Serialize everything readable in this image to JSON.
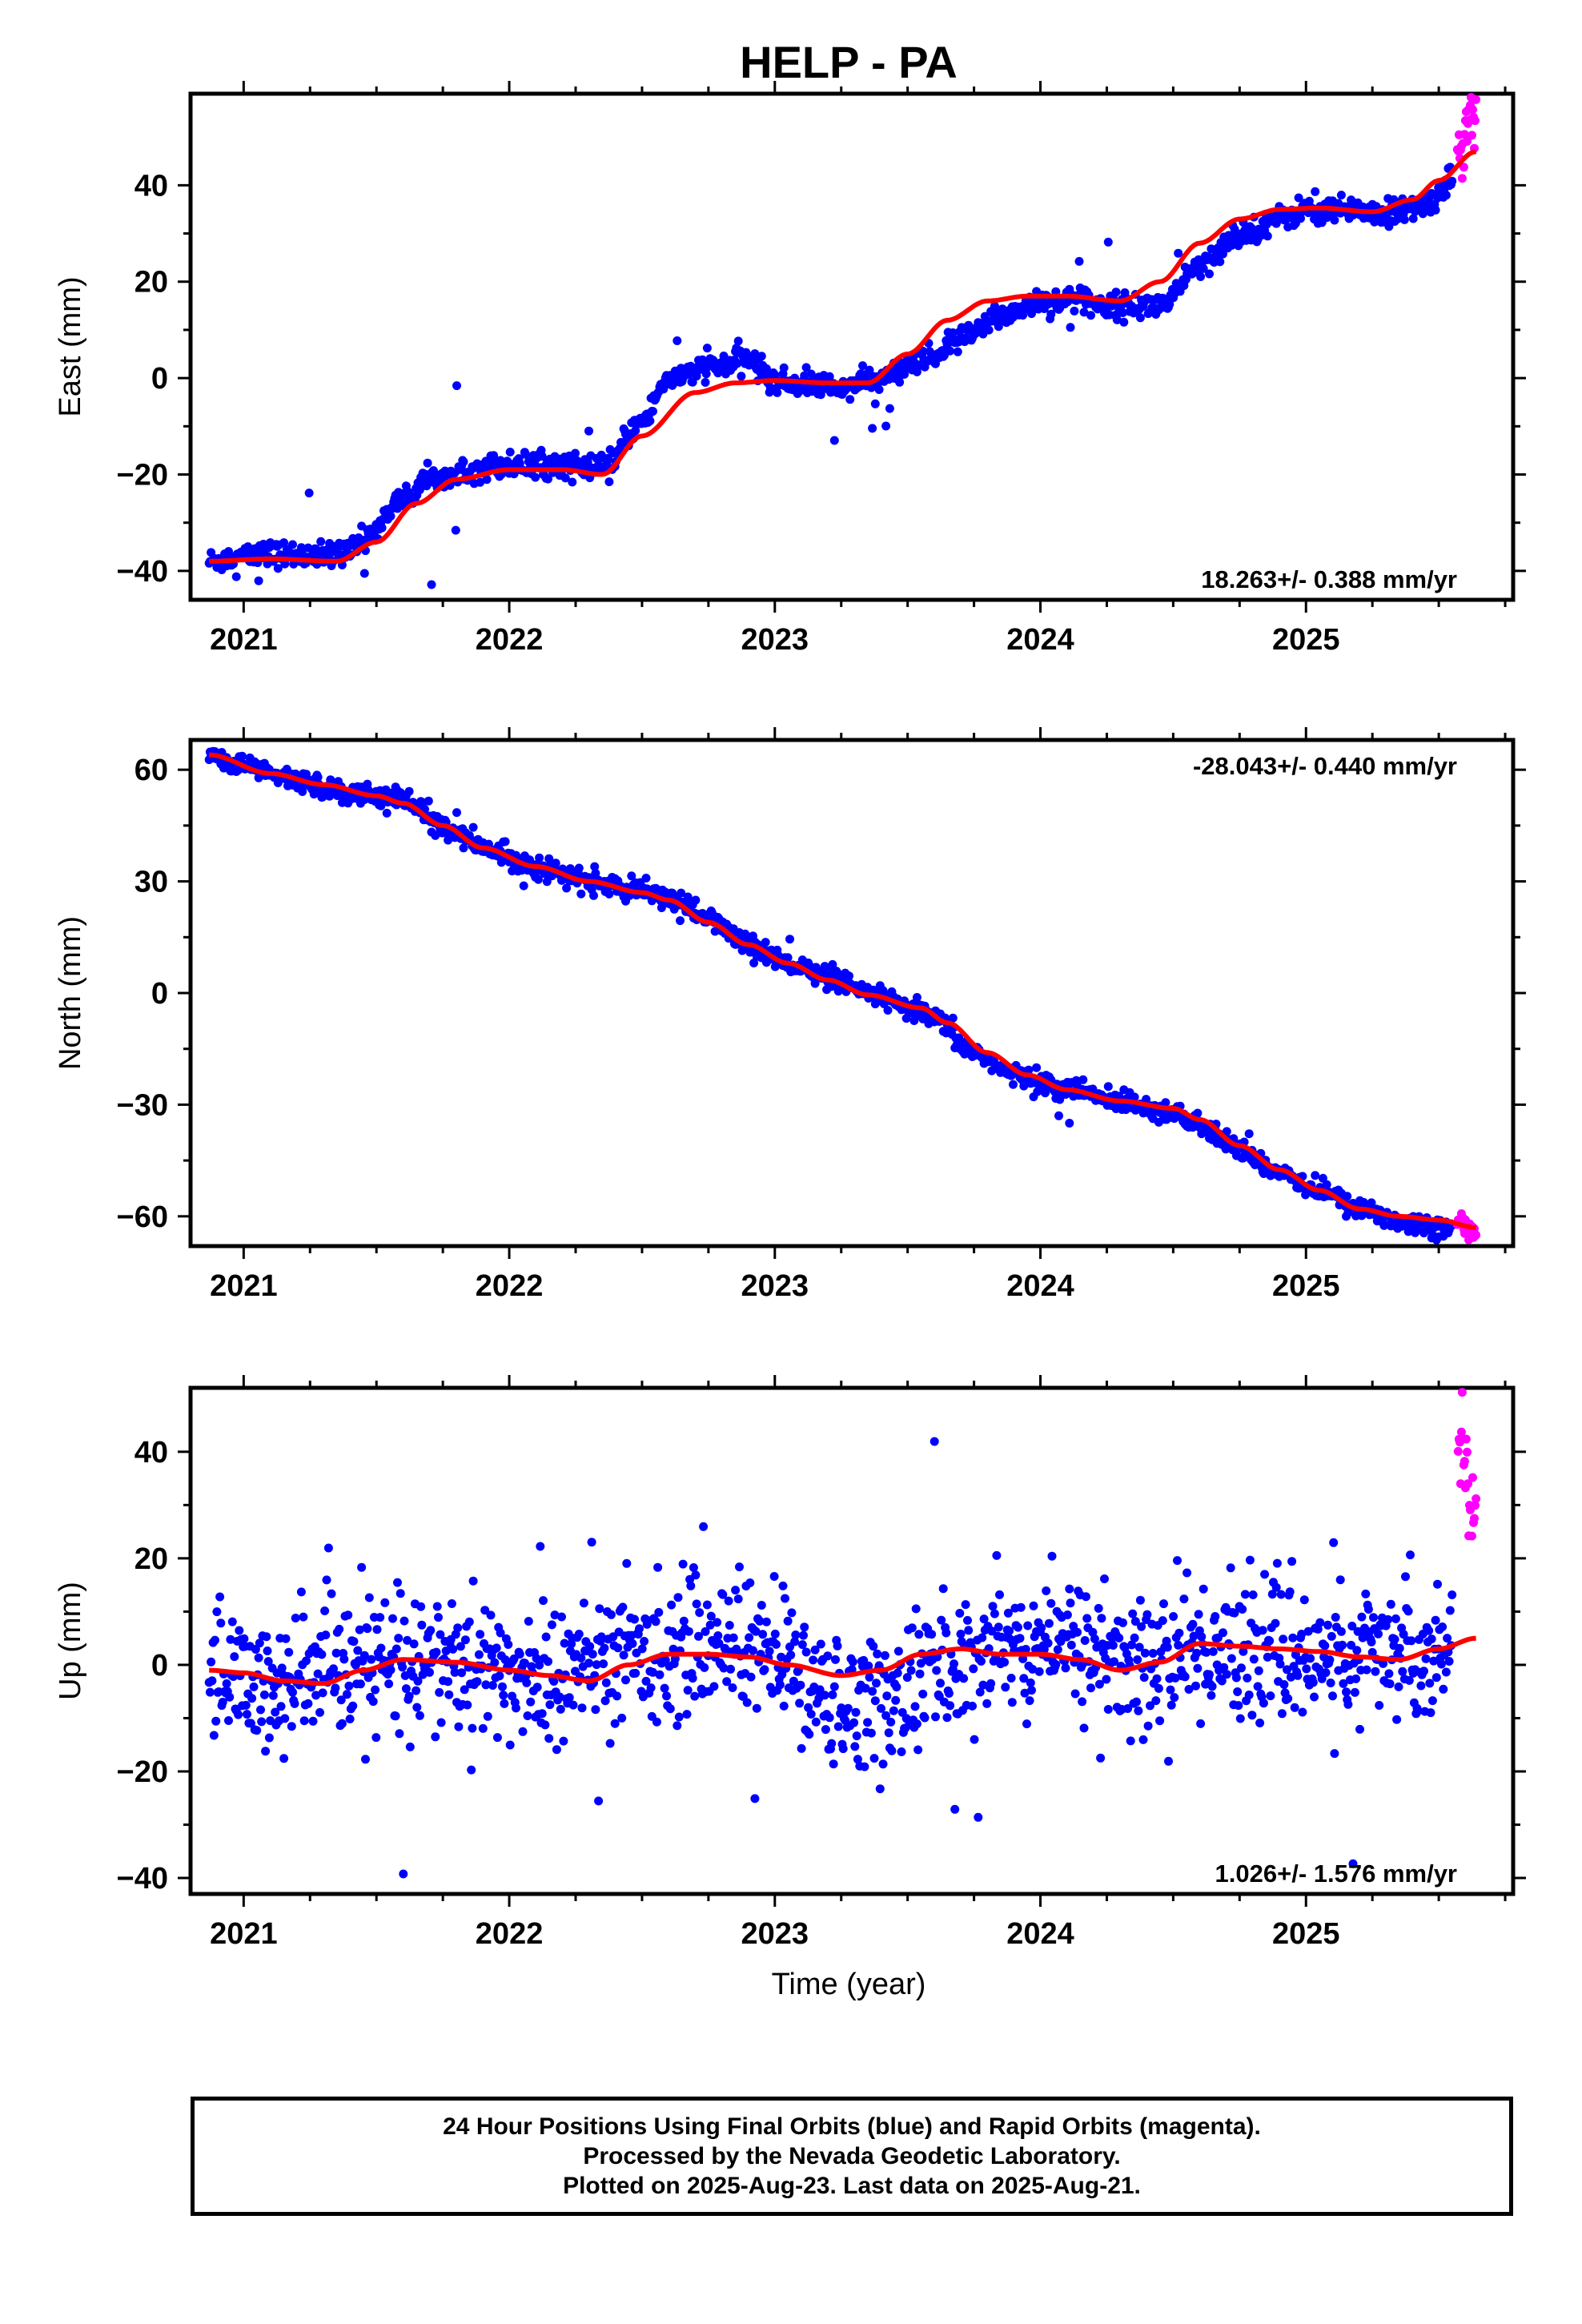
{
  "title": "HELP - PA",
  "chart_data": [
    {
      "type": "scatter",
      "ylabel": "East (mm)",
      "xlim": [
        2020.8,
        2025.78
      ],
      "ylim": [
        -46,
        59
      ],
      "yticks": [
        -40,
        -20,
        0,
        20,
        40
      ],
      "xticks": [
        2021,
        2022,
        2023,
        2024,
        2025
      ],
      "rate_text": "18.263+/- 0.388 mm/yr",
      "rate_position": "bottom-right",
      "grid": false,
      "series": [
        {
          "color": "#0000ff",
          "noise": 1.3,
          "outlier_rate": 0.015,
          "outlier_scale": 5,
          "x": [
            2020.87,
            2021.0,
            2021.1,
            2021.3,
            2021.45,
            2021.6,
            2021.7,
            2021.8,
            2022.0,
            2022.2,
            2022.35,
            2022.5,
            2022.6,
            2022.75,
            2022.9,
            2023.0,
            2023.1,
            2023.25,
            2023.4,
            2023.55,
            2023.7,
            2023.85,
            2024.0,
            2024.15,
            2024.3,
            2024.45,
            2024.6,
            2024.75,
            2024.9,
            2025.0,
            2025.15,
            2025.3,
            2025.45,
            2025.55
          ],
          "y": [
            -38,
            -37,
            -36.5,
            -37,
            -34,
            -25,
            -21,
            -19,
            -18,
            -18,
            -19,
            -9,
            0,
            2,
            4,
            -1,
            -1,
            -2,
            0,
            3,
            8,
            13,
            16,
            16,
            15,
            15,
            23,
            30,
            33,
            35,
            35,
            34,
            36,
            41
          ]
        },
        {
          "color": "#ff00ff",
          "noise": 3,
          "outlier_rate": 0,
          "outlier_scale": 1,
          "x": [
            2025.57,
            2025.64
          ],
          "y": [
            47,
            55
          ]
        }
      ],
      "fit": {
        "color": "#ff0000",
        "x": [
          2020.87,
          2021.1,
          2021.35,
          2021.5,
          2021.65,
          2021.8,
          2022.0,
          2022.2,
          2022.35,
          2022.5,
          2022.7,
          2022.85,
          2023.0,
          2023.2,
          2023.35,
          2023.5,
          2023.65,
          2023.8,
          2023.95,
          2024.1,
          2024.3,
          2024.45,
          2024.6,
          2024.75,
          2024.9,
          2025.05,
          2025.25,
          2025.4,
          2025.5,
          2025.64
        ],
        "y": [
          -38,
          -37.5,
          -38,
          -34,
          -26,
          -21,
          -19,
          -19,
          -20,
          -12,
          -3,
          -1,
          -0.5,
          -1,
          -1,
          5,
          12,
          16,
          17,
          17,
          16,
          20,
          28,
          33,
          35,
          35.3,
          34.5,
          37,
          41,
          47
        ]
      }
    },
    {
      "type": "scatter",
      "ylabel": "North (mm)",
      "xlim": [
        2020.8,
        2025.78
      ],
      "ylim": [
        -68,
        68
      ],
      "yticks": [
        -60,
        -30,
        0,
        30,
        60
      ],
      "xticks": [
        2021,
        2022,
        2023,
        2024,
        2025
      ],
      "rate_text": "-28.043+/- 0.440 mm/yr",
      "rate_position": "top-right",
      "grid": false,
      "series": [
        {
          "color": "#0000ff",
          "noise": 1.4,
          "outlier_rate": 0.01,
          "outlier_scale": 3,
          "x": [
            2020.87,
            2021.0,
            2021.2,
            2021.4,
            2021.6,
            2021.75,
            2021.9,
            2022.1,
            2022.3,
            2022.5,
            2022.6,
            2022.75,
            2022.9,
            2023.05,
            2023.2,
            2023.35,
            2023.5,
            2023.6,
            2023.75,
            2023.9,
            2024.1,
            2024.3,
            2024.5,
            2024.6,
            2024.75,
            2024.9,
            2025.05,
            2025.2,
            2025.4,
            2025.55
          ],
          "y": [
            64,
            61,
            57,
            54,
            52,
            45,
            39,
            34,
            30,
            27,
            26,
            20,
            13,
            8,
            4,
            0,
            -4,
            -7,
            -16,
            -22,
            -26,
            -29,
            -32,
            -36,
            -42,
            -48,
            -53,
            -58,
            -62,
            -63
          ]
        },
        {
          "color": "#ff00ff",
          "noise": 1.2,
          "outlier_rate": 0,
          "outlier_scale": 1,
          "x": [
            2025.57,
            2025.64
          ],
          "y": [
            -61,
            -64
          ]
        }
      ],
      "fit": {
        "color": "#ff0000",
        "x": [
          2020.87,
          2021.1,
          2021.3,
          2021.5,
          2021.6,
          2021.75,
          2021.9,
          2022.1,
          2022.3,
          2022.5,
          2022.6,
          2022.75,
          2022.9,
          2023.05,
          2023.2,
          2023.35,
          2023.55,
          2023.65,
          2023.8,
          2023.95,
          2024.1,
          2024.3,
          2024.5,
          2024.6,
          2024.75,
          2024.9,
          2025.05,
          2025.2,
          2025.35,
          2025.5,
          2025.64
        ],
        "y": [
          64,
          59,
          56,
          53,
          51,
          45,
          39,
          34,
          30,
          27,
          25,
          19,
          13,
          8,
          3.5,
          -0.5,
          -4,
          -8,
          -16,
          -22,
          -26,
          -29,
          -31,
          -34,
          -41,
          -47.5,
          -53,
          -58,
          -60,
          -61,
          -63
        ]
      }
    },
    {
      "type": "scatter",
      "ylabel": "Up (mm)",
      "xlabel": "Time (year)",
      "xlim": [
        2020.8,
        2025.78
      ],
      "ylim": [
        -43,
        52
      ],
      "yticks": [
        -40,
        -20,
        0,
        20,
        40
      ],
      "xticks": [
        2021,
        2022,
        2023,
        2024,
        2025
      ],
      "rate_text": "1.026+/- 1.576 mm/yr",
      "rate_position": "bottom-right",
      "grid": false,
      "series": [
        {
          "color": "#0000ff",
          "noise": 6.5,
          "outlier_rate": 0.02,
          "outlier_scale": 3.2,
          "x": [
            2020.87,
            2021.1,
            2021.3,
            2021.5,
            2021.65,
            2021.8,
            2022.0,
            2022.2,
            2022.4,
            2022.6,
            2022.8,
            2023.0,
            2023.2,
            2023.4,
            2023.6,
            2023.8,
            2024.0,
            2024.2,
            2024.4,
            2024.6,
            2024.8,
            2025.0,
            2025.2,
            2025.4,
            2025.55
          ],
          "y": [
            -2,
            -4,
            -3,
            0,
            1,
            0,
            -2,
            -2,
            1,
            3,
            5,
            2,
            -8,
            -7,
            -2,
            2,
            5,
            3,
            -1,
            3,
            2,
            2,
            1,
            2,
            4
          ]
        },
        {
          "color": "#ff00ff",
          "noise": 6,
          "outlier_rate": 0,
          "outlier_scale": 1,
          "x": [
            2025.57,
            2025.64
          ],
          "y": [
            42,
            26
          ]
        }
      ],
      "fit": {
        "color": "#ff0000",
        "x": [
          2020.87,
          2021.0,
          2021.15,
          2021.3,
          2021.45,
          2021.6,
          2021.8,
          2022.0,
          2022.15,
          2022.3,
          2022.45,
          2022.6,
          2022.75,
          2022.9,
          2023.05,
          2023.25,
          2023.4,
          2023.55,
          2023.7,
          2023.85,
          2024.0,
          2024.15,
          2024.3,
          2024.45,
          2024.6,
          2024.75,
          2024.9,
          2025.05,
          2025.2,
          2025.35,
          2025.5,
          2025.64
        ],
        "y": [
          -1,
          -1.5,
          -3,
          -3.5,
          -1,
          1,
          0.5,
          -1,
          -2,
          -3,
          0,
          2,
          2,
          1.5,
          0,
          -2,
          -1,
          2,
          3,
          2,
          2,
          1,
          -1,
          0.5,
          4,
          3.5,
          3,
          2.5,
          1.5,
          1,
          3,
          5
        ]
      }
    }
  ],
  "footer": {
    "line1": "24 Hour Positions Using Final Orbits (blue) and Rapid Orbits (magenta).",
    "line2": "Processed by the Nevada Geodetic Laboratory.",
    "line3": "Plotted on 2025-Aug-23. Last data on 2025-Aug-21."
  }
}
